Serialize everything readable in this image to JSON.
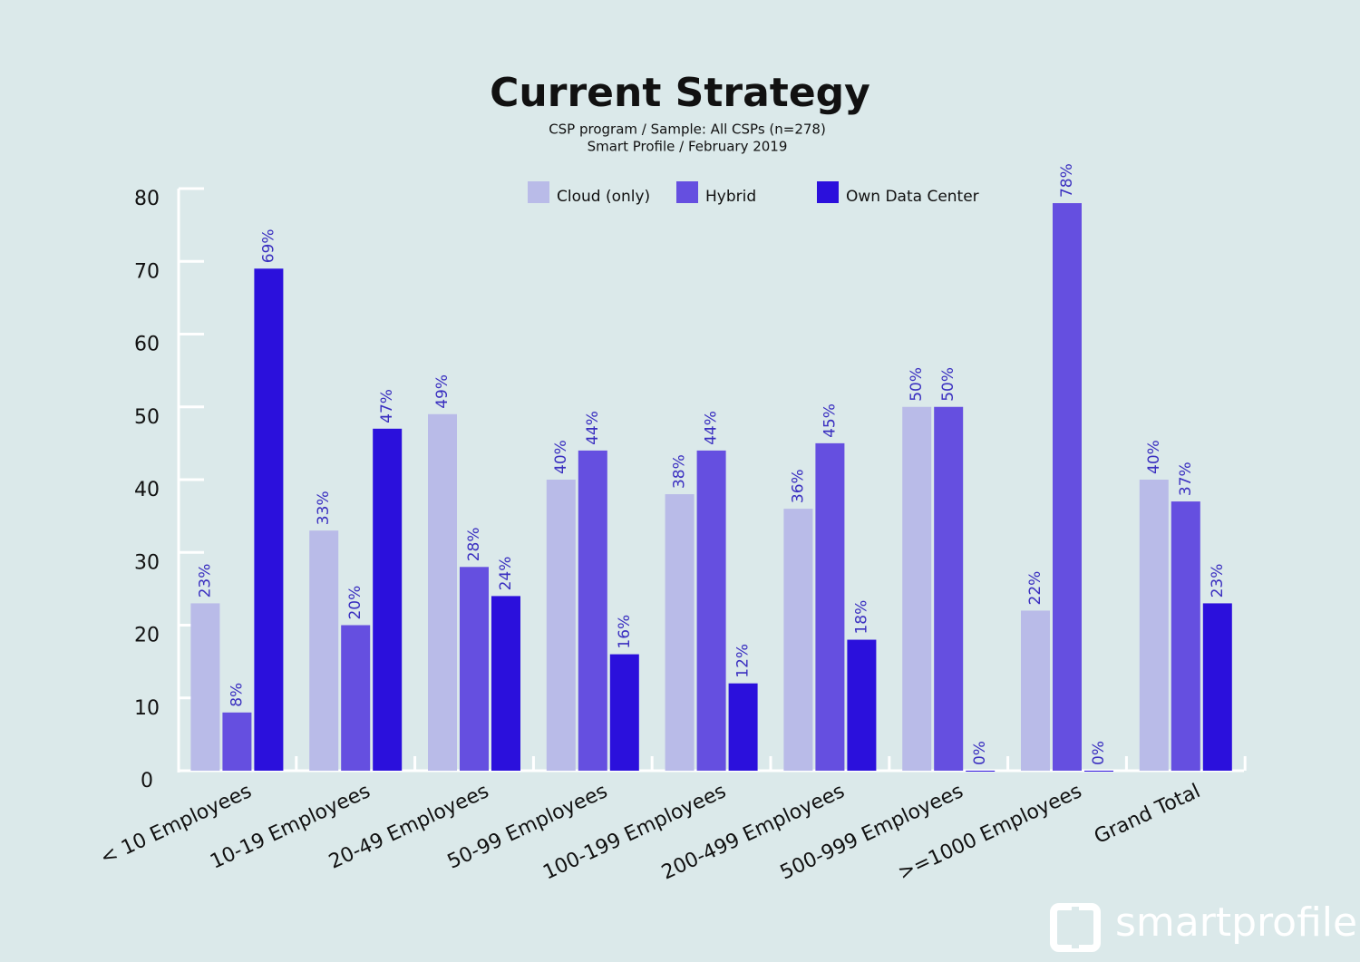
{
  "chart_data": {
    "type": "bar",
    "title": "Current Strategy",
    "subtitle": [
      "CSP program / Sample: All CSPs (n=278)",
      "Smart Profile / February 2019"
    ],
    "categories": [
      "< 10 Employees",
      "10-19 Employees",
      "20-49 Employees",
      "50-99 Employees",
      "100-199 Employees",
      "200-499 Employees",
      "500-999 Employees",
      ">=1000 Employees",
      "Grand Total"
    ],
    "series": [
      {
        "name": "Cloud (only)",
        "color": "#b9bbe8",
        "values": [
          23,
          33,
          49,
          40,
          38,
          36,
          50,
          22,
          40
        ],
        "value_labels": [
          "23%",
          "33%",
          "49%",
          "40%",
          "38%",
          "36%",
          "50%",
          "22%",
          "40%"
        ]
      },
      {
        "name": "Hybrid",
        "color": "#654fe0",
        "values": [
          8,
          20,
          28,
          44,
          44,
          45,
          50,
          78,
          37
        ],
        "value_labels": [
          "8%",
          "20%",
          "28%",
          "44%",
          "44%",
          "45%",
          "50%",
          "78%",
          "37%"
        ]
      },
      {
        "name": "Own Data Center",
        "color": "#2b10dc",
        "values": [
          69,
          47,
          24,
          16,
          12,
          18,
          0,
          0,
          23
        ],
        "value_labels": [
          "69%",
          "47%",
          "24%",
          "16%",
          "12%",
          "18%",
          "0%",
          "0%",
          "23%"
        ]
      }
    ],
    "ylim": [
      0,
      80
    ],
    "yticks": [
      0,
      10,
      20,
      30,
      40,
      50,
      60,
      70,
      80
    ],
    "grid": false,
    "legend": "top"
  },
  "logo": "smartprofile"
}
